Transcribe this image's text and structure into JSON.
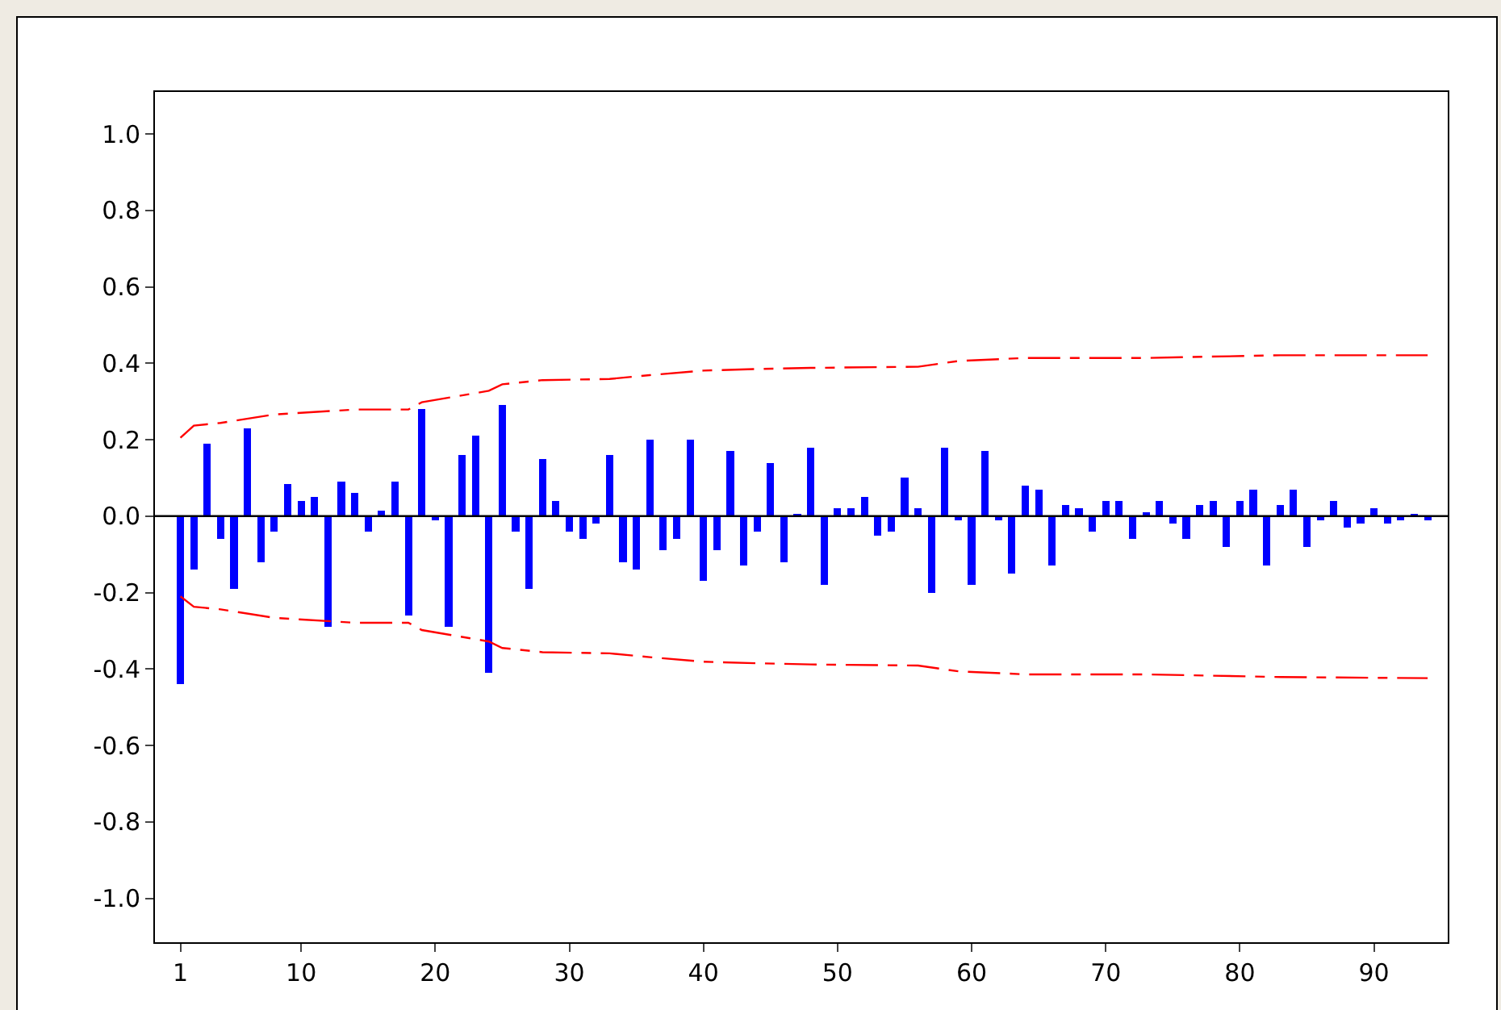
{
  "chart_data": {
    "type": "bar",
    "x": [
      1,
      2,
      3,
      4,
      5,
      6,
      7,
      8,
      9,
      10,
      11,
      12,
      13,
      14,
      15,
      16,
      17,
      18,
      19,
      20,
      21,
      22,
      23,
      24,
      25,
      26,
      27,
      28,
      29,
      30,
      31,
      32,
      33,
      34,
      35,
      36,
      37,
      38,
      39,
      40,
      41,
      42,
      43,
      44,
      45,
      46,
      47,
      48,
      49,
      50,
      51,
      52,
      53,
      54,
      55,
      56,
      57,
      58,
      59,
      60,
      61,
      62,
      63,
      64,
      65,
      66,
      67,
      68,
      69,
      70,
      71,
      72,
      73,
      74,
      75,
      76,
      77,
      78,
      79,
      80,
      81,
      82,
      83,
      84,
      85,
      86,
      87,
      88,
      89,
      90,
      91,
      92,
      93,
      94
    ],
    "series": [
      {
        "color": "#0000ff",
        "values": [
          -0.44,
          -0.14,
          0.19,
          -0.06,
          -0.19,
          0.23,
          -0.12,
          -0.04,
          0.085,
          0.04,
          0.05,
          -0.29,
          0.09,
          0.06,
          -0.04,
          0.015,
          0.09,
          -0.26,
          0.28,
          -0.01,
          -0.29,
          0.16,
          0.21,
          -0.41,
          0.29,
          -0.04,
          -0.19,
          0.15,
          0.04,
          -0.04,
          -0.06,
          -0.02,
          0.16,
          -0.12,
          -0.14,
          0.2,
          -0.09,
          -0.06,
          0.2,
          -0.17,
          -0.09,
          0.17,
          -0.13,
          -0.04,
          0.14,
          -0.12,
          0.005,
          0.18,
          -0.18,
          0.02,
          0.02,
          0.05,
          -0.05,
          -0.04,
          0.1,
          0.02,
          -0.2,
          0.18,
          -0.01,
          -0.18,
          0.17,
          -0.01,
          -0.15,
          0.08,
          0.07,
          -0.13,
          0.03,
          0.02,
          -0.04,
          0.04,
          0.04,
          -0.06,
          0.01,
          0.04,
          -0.02,
          -0.06,
          0.03,
          0.04,
          -0.08,
          0.04,
          0.07,
          -0.13,
          0.03,
          0.07,
          -0.08,
          -0.01,
          0.04,
          -0.03,
          -0.02,
          0.02,
          -0.02,
          -0.01,
          0.005,
          -0.01
        ]
      },
      {
        "type": "line",
        "color": "#ff0000",
        "line_style": "dashed",
        "x": [
          1,
          2,
          4,
          8,
          14,
          18,
          19,
          22,
          24,
          25,
          28,
          33,
          36,
          40,
          44,
          48,
          56,
          59,
          64,
          73,
          83,
          94
        ],
        "values": [
          0.205,
          0.237,
          0.244,
          0.266,
          0.279,
          0.279,
          0.298,
          0.316,
          0.328,
          0.345,
          0.356,
          0.359,
          0.369,
          0.381,
          0.385,
          0.388,
          0.391,
          0.406,
          0.414,
          0.414,
          0.421,
          0.421
        ]
      },
      {
        "type": "line",
        "color": "#ff0000",
        "line_style": "dashed",
        "x": [
          1,
          2,
          4,
          8,
          14,
          18,
          19,
          22,
          24,
          25,
          28,
          33,
          36,
          40,
          44,
          48,
          56,
          59,
          64,
          73,
          83,
          94
        ],
        "values": [
          -0.21,
          -0.237,
          -0.244,
          -0.266,
          -0.279,
          -0.279,
          -0.298,
          -0.316,
          -0.328,
          -0.345,
          -0.356,
          -0.359,
          -0.369,
          -0.381,
          -0.385,
          -0.388,
          -0.391,
          -0.406,
          -0.414,
          -0.414,
          -0.421,
          -0.424
        ]
      }
    ],
    "xlim": [
      -0.9,
      95.5
    ],
    "xticks": [
      1,
      10,
      20,
      30,
      40,
      50,
      60,
      70,
      80,
      90
    ],
    "ylim": [
      -1.115,
      1.11
    ],
    "yticks": [
      {
        "value": -1,
        "label": "-1.0"
      },
      {
        "value": -0.8,
        "label": "-0.8"
      },
      {
        "value": -0.6,
        "label": "-0.6"
      },
      {
        "value": -0.4,
        "label": "-0.4"
      },
      {
        "value": -0.2,
        "label": "-0.2"
      },
      {
        "value": 0,
        "label": "0.0"
      },
      {
        "value": 0.2,
        "label": "0.2"
      },
      {
        "value": 0.4,
        "label": "0.4"
      },
      {
        "value": 0.6,
        "label": "0.6"
      },
      {
        "value": 0.8,
        "label": "0.8"
      },
      {
        "value": 1,
        "label": "1.0"
      }
    ],
    "ref_lines": [
      {
        "axis": "y",
        "value": 0,
        "color": "#000000"
      }
    ],
    "grid": false
  }
}
